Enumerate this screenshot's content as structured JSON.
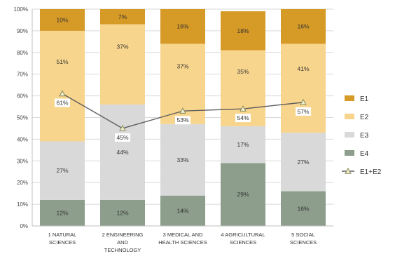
{
  "chart_data": {
    "type": "bar",
    "stacked": true,
    "categories": [
      [
        "1 NATURAL",
        "SCIENCES"
      ],
      [
        "2 ENGINEERING",
        "AND",
        "TECHNOLOGY"
      ],
      [
        "3 MEDICAL AND",
        "HEALTH SCIENCES"
      ],
      [
        "4 AGRICULTURAL",
        "SCIENCES"
      ],
      [
        "5 SOCIAL",
        "SCIENCES"
      ]
    ],
    "ylim": [
      0,
      100
    ],
    "yticks": [
      0,
      10,
      20,
      30,
      40,
      50,
      60,
      70,
      80,
      90,
      100
    ],
    "ytick_suffix": "%",
    "grid": true,
    "legend_position": "right",
    "series": [
      {
        "name": "E4",
        "values": [
          12,
          12,
          14,
          29,
          16
        ],
        "labels": [
          "12%",
          "12%",
          "14%",
          "29%",
          "16%"
        ],
        "color": "#8d9e8c"
      },
      {
        "name": "E3",
        "values": [
          27,
          44,
          33,
          17,
          27
        ],
        "labels": [
          "27%",
          "44%",
          "33%",
          "17%",
          "27%"
        ],
        "color": "#d9d9d9"
      },
      {
        "name": "E2",
        "values": [
          51,
          37,
          37,
          35,
          41
        ],
        "labels": [
          "51%",
          "37%",
          "37%",
          "35%",
          "41%"
        ],
        "color": "#f8d58d"
      },
      {
        "name": "E1",
        "values": [
          10,
          7,
          16,
          18,
          16
        ],
        "labels": [
          "10%",
          "7%",
          "16%",
          "18%",
          "16%"
        ],
        "color": "#d69a27"
      }
    ],
    "line_series": {
      "name": "E1+E2",
      "values": [
        61,
        45,
        53,
        54,
        57
      ],
      "labels": [
        "61%",
        "45%",
        "53%",
        "54%",
        "57%"
      ],
      "color": "#5f5f5f",
      "marker": "triangle",
      "marker_fill": "#efeecf"
    },
    "legend_order": [
      "E1",
      "E2",
      "E3",
      "E4",
      "E1+E2"
    ]
  }
}
